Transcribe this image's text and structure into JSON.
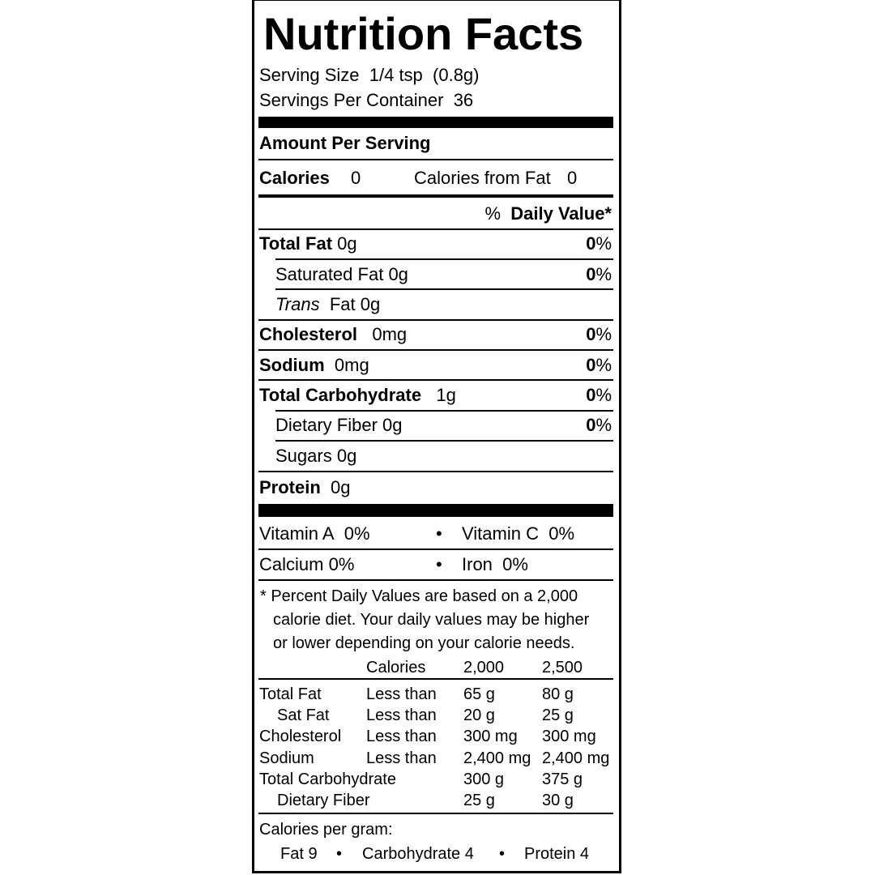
{
  "title": "Nutrition Facts",
  "serving_size": {
    "label": "Serving Size",
    "value": "1/4 tsp  (0.8g)"
  },
  "servings_per_container": {
    "label": "Servings Per Container",
    "value": "36"
  },
  "amount_per_serving": "Amount Per Serving",
  "calories": {
    "label": "Calories",
    "value": "0",
    "from_fat_label": "Calories from Fat",
    "from_fat_value": "0"
  },
  "dv_header": {
    "pct": "%",
    "label": "Daily Value*"
  },
  "nutrients": [
    {
      "label": "Total Fat",
      "amount": "0g",
      "dv": "0",
      "unit": "%"
    },
    {
      "label": "Saturated Fat",
      "amount": "0g",
      "dv": "0",
      "unit": "%"
    },
    {
      "label_italic": "Trans",
      "label": "Fat",
      "amount": "0g"
    },
    {
      "label": "Cholesterol",
      "amount": "0mg",
      "dv": "0",
      "unit": "%"
    },
    {
      "label": "Sodium",
      "amount": "0mg",
      "dv": "0",
      "unit": "%"
    },
    {
      "label": "Total Carbohydrate",
      "amount": "1g",
      "dv": "0",
      "unit": "%"
    },
    {
      "label": "Dietary Fiber",
      "amount": "0g",
      "dv": "0",
      "unit": "%"
    },
    {
      "label": "Sugars",
      "amount": "0g"
    },
    {
      "label": "Protein",
      "amount": "0g"
    }
  ],
  "vitamins": [
    {
      "label": "Vitamin A",
      "value": "0%"
    },
    {
      "label": "Vitamin C",
      "value": "0%"
    },
    {
      "label": "Calcium",
      "value": "0%"
    },
    {
      "label": "Iron",
      "value": "0%"
    }
  ],
  "bullet": "•",
  "footnote": [
    "* Percent Daily Values are based on a 2,000",
    "calorie diet. Your daily values may be higher",
    "or lower depending on your calorie needs."
  ],
  "dv_table": {
    "header": [
      "",
      "Calories",
      "2,000",
      "2,500"
    ],
    "rows": [
      [
        "Total Fat",
        "Less than",
        "65 g",
        "80 g"
      ],
      [
        "Sat Fat",
        "Less than",
        "20 g",
        "25 g"
      ],
      [
        "Cholesterol",
        "Less than",
        "300 mg",
        "300 mg"
      ],
      [
        "Sodium",
        "Less than",
        "2,400 mg",
        "2,400 mg"
      ],
      [
        "Total Carbohydrate",
        "",
        "300 g",
        "375 g"
      ],
      [
        "Dietary Fiber",
        "",
        "25 g",
        "30 g"
      ]
    ]
  },
  "calories_per_gram": {
    "label": "Calories per gram:",
    "fat": "Fat 9",
    "carb": "Carbohydrate 4",
    "protein": "Protein 4"
  }
}
